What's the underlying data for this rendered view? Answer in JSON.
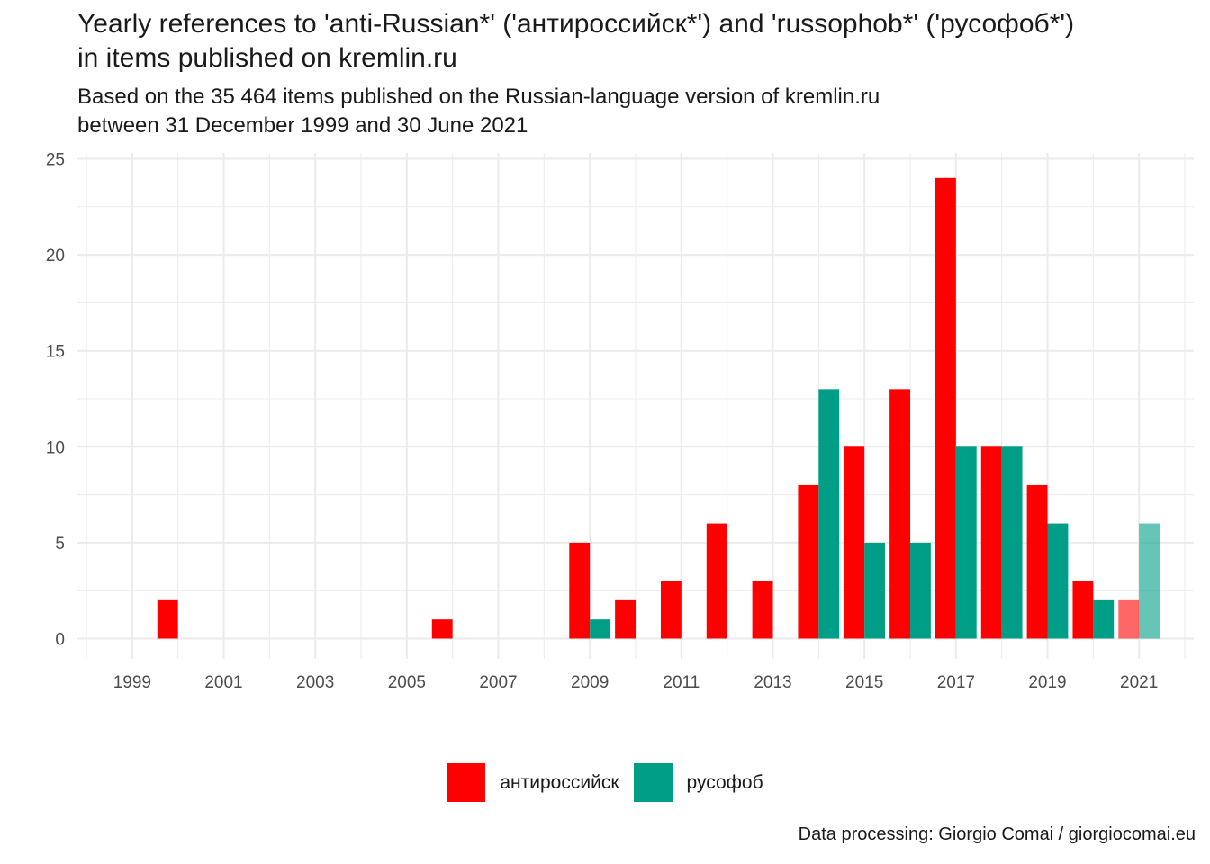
{
  "title_lines": [
    "Yearly references to 'anti-Russian*' ('антироссийск*') and 'russophob*' ('русофоб*')",
    "in items published on kremlin.ru"
  ],
  "subtitle_lines": [
    "Based on the  35 464 items published on the Russian-language version of kremlin.ru",
    "between 31 December 1999 and 30 June 2021"
  ],
  "caption": "Data processing: Giorgio Comai / giorgiocomai.eu",
  "colors": {
    "anti": "#ff0000",
    "russo": "#009e87",
    "grid": "#ebebeb"
  },
  "chart_data": {
    "type": "bar",
    "grouping": "dodge",
    "x_ticks": [
      "1999",
      "2001",
      "2003",
      "2005",
      "2007",
      "2009",
      "2011",
      "2013",
      "2015",
      "2017",
      "2019",
      "2021"
    ],
    "y_ticks": [
      0,
      5,
      10,
      15,
      20,
      25
    ],
    "xlim": [
      1998,
      2022
    ],
    "ylim": [
      0,
      25
    ],
    "grid": true,
    "legend_position": "bottom",
    "partial_year": "2021",
    "series": [
      {
        "name": "антироссийск",
        "color": "#ff0000",
        "data": [
          {
            "x": 2000,
            "y": 2
          },
          {
            "x": 2006,
            "y": 1
          },
          {
            "x": 2009,
            "y": 5
          },
          {
            "x": 2010,
            "y": 2
          },
          {
            "x": 2011,
            "y": 3
          },
          {
            "x": 2012,
            "y": 6
          },
          {
            "x": 2013,
            "y": 3
          },
          {
            "x": 2014,
            "y": 8
          },
          {
            "x": 2015,
            "y": 10
          },
          {
            "x": 2016,
            "y": 13
          },
          {
            "x": 2017,
            "y": 24
          },
          {
            "x": 2018,
            "y": 10
          },
          {
            "x": 2019,
            "y": 8
          },
          {
            "x": 2020,
            "y": 3
          },
          {
            "x": 2021,
            "y": 2
          }
        ]
      },
      {
        "name": "русофоб",
        "color": "#009e87",
        "data": [
          {
            "x": 2009,
            "y": 1
          },
          {
            "x": 2014,
            "y": 13
          },
          {
            "x": 2015,
            "y": 5
          },
          {
            "x": 2016,
            "y": 5
          },
          {
            "x": 2017,
            "y": 10
          },
          {
            "x": 2018,
            "y": 10
          },
          {
            "x": 2019,
            "y": 6
          },
          {
            "x": 2020,
            "y": 2
          },
          {
            "x": 2021,
            "y": 6
          }
        ]
      }
    ]
  }
}
